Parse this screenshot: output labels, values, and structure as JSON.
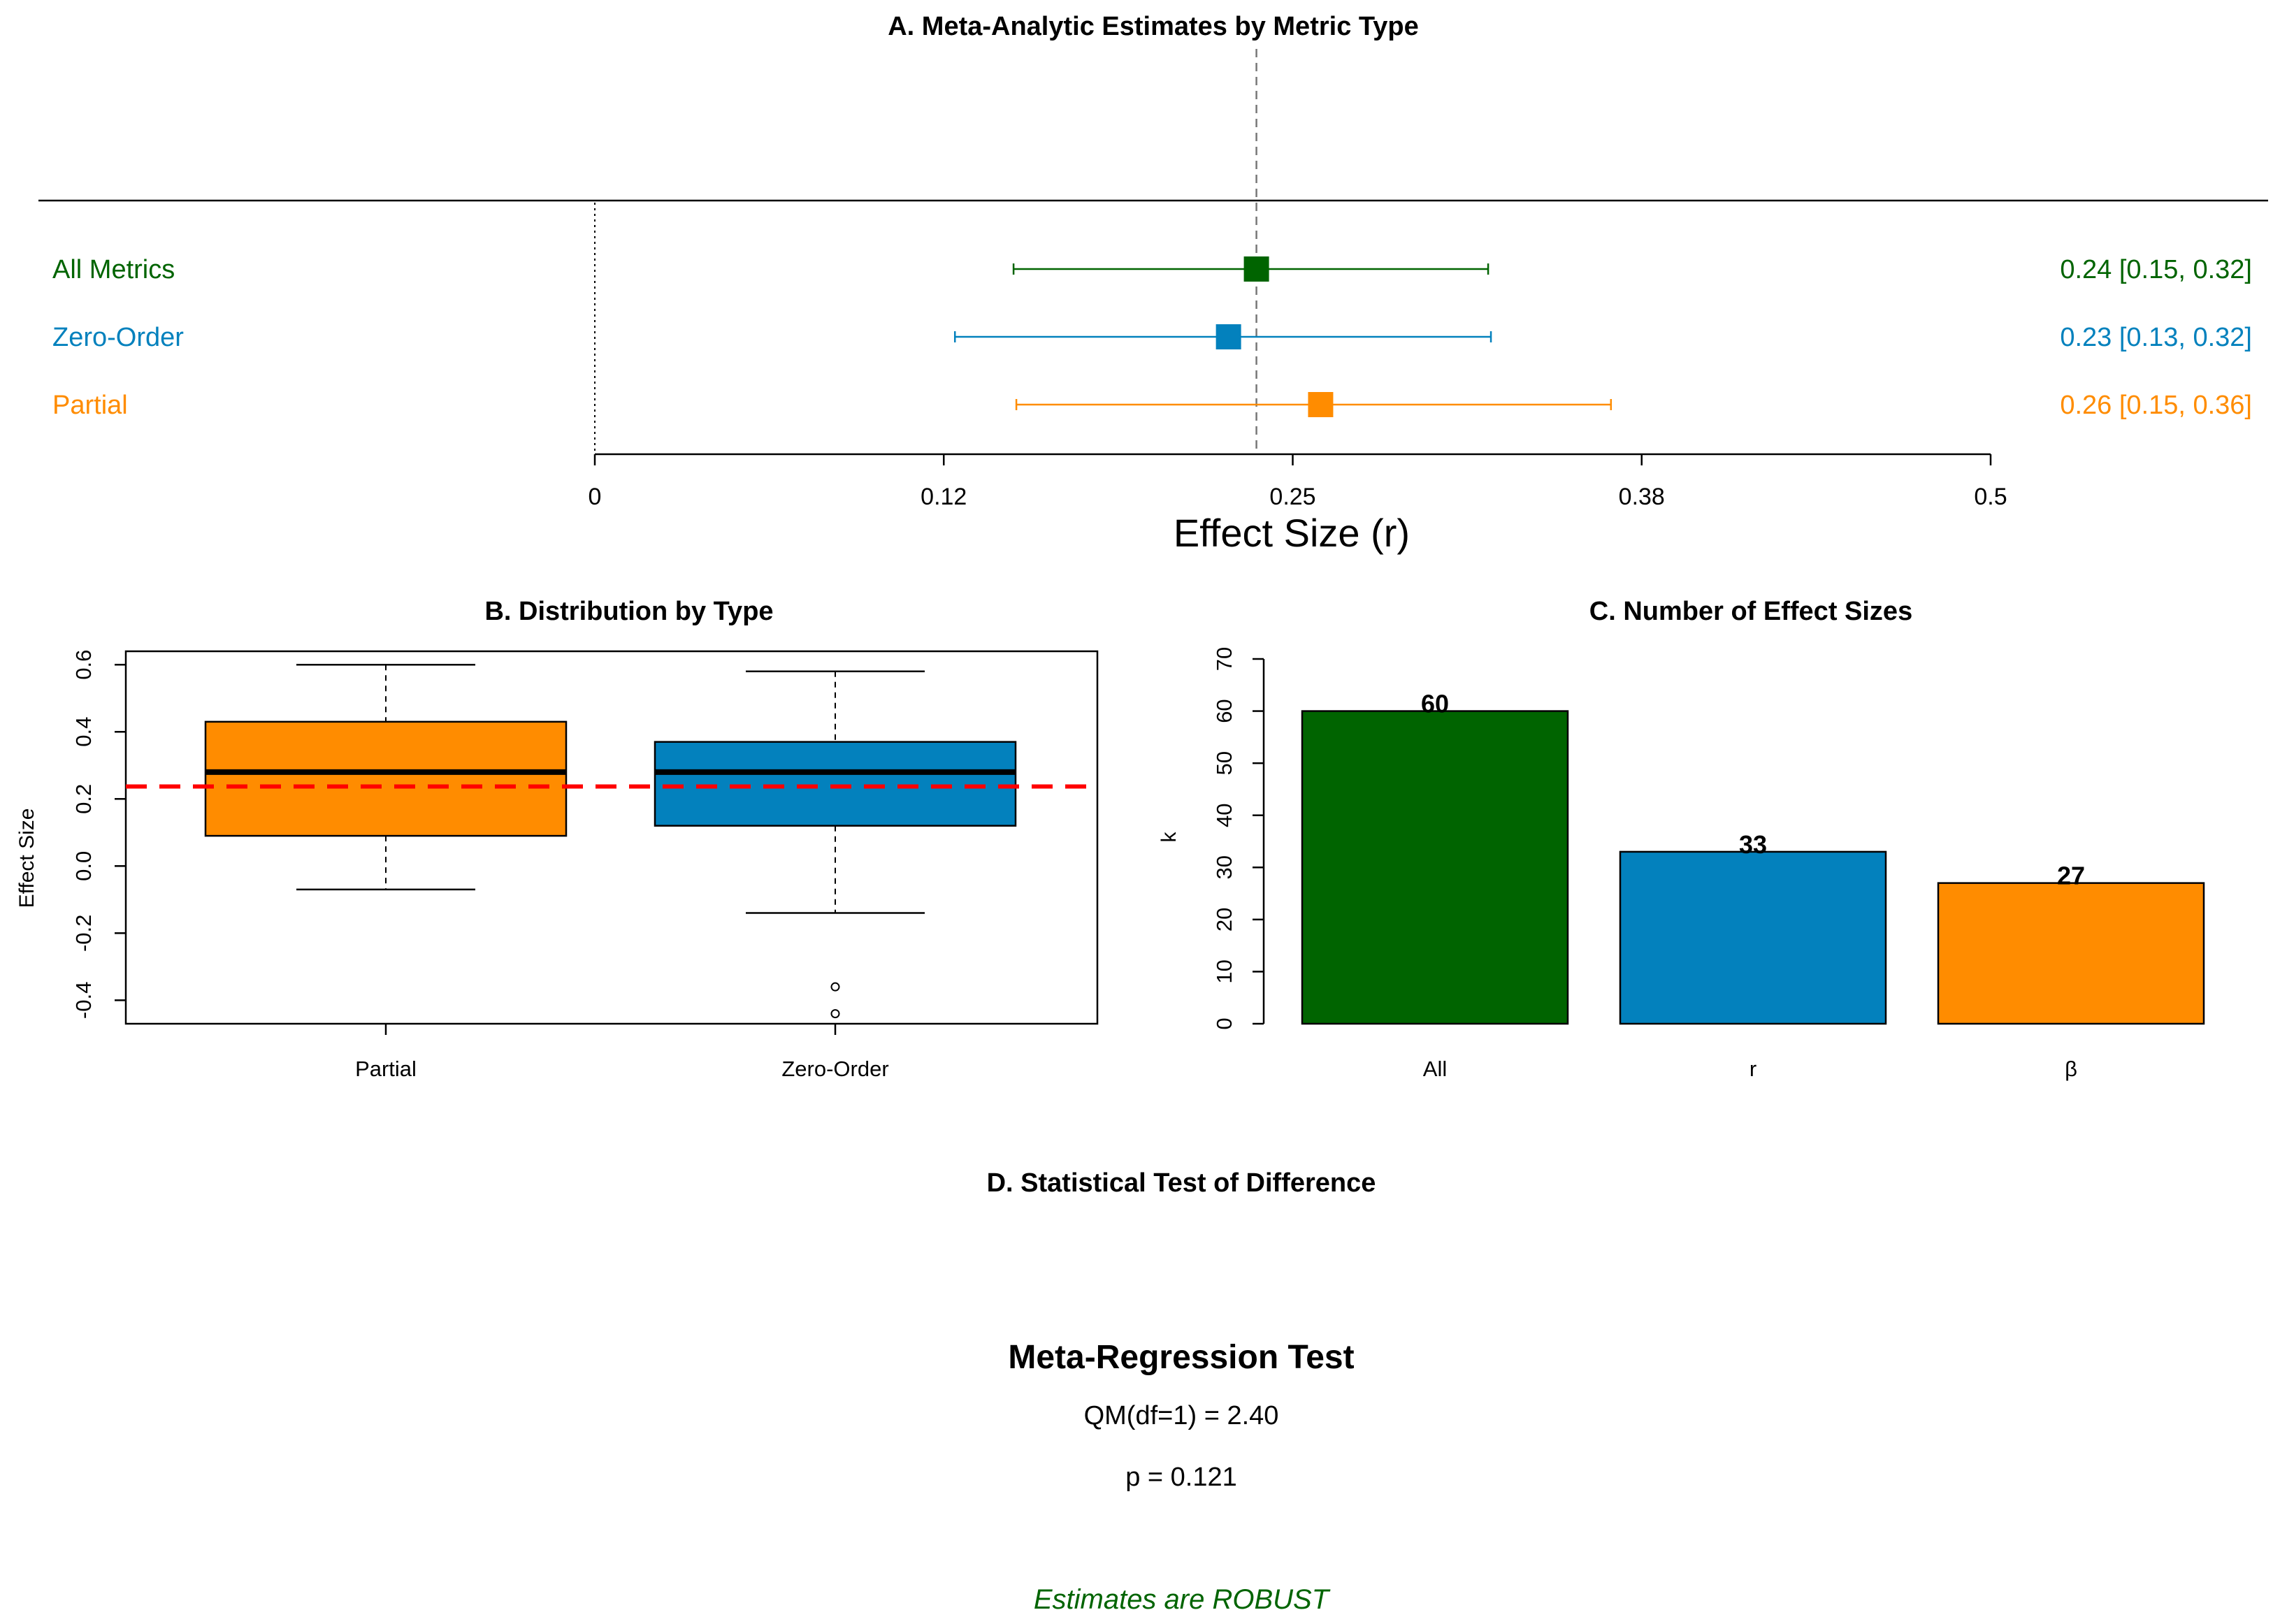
{
  "colors": {
    "all": "#006400",
    "zero_order": "#0381BD",
    "partial": "#FF8C00",
    "reference_line": "#FF0000",
    "robust": "#006400"
  },
  "chart_data": [
    {
      "id": "A",
      "type": "forest",
      "title": "A. Meta-Analytic Estimates by Metric Type",
      "xlabel": "Effect Size (r)",
      "xlim": [
        0,
        0.5
      ],
      "xticks": [
        0,
        0.125,
        0.25,
        0.375,
        0.5
      ],
      "xtick_labels": [
        "0",
        "0.12",
        "0.25",
        "0.38",
        "0.5"
      ],
      "pooled_reference": 0.237,
      "rows": [
        {
          "name": "All Metrics",
          "estimate": 0.237,
          "lower": 0.15,
          "upper": 0.32,
          "label": "0.24 [0.15, 0.32]",
          "color_key": "all"
        },
        {
          "name": "Zero-Order",
          "estimate": 0.227,
          "lower": 0.129,
          "upper": 0.321,
          "label": "0.23 [0.13, 0.32]",
          "color_key": "zero_order"
        },
        {
          "name": "Partial",
          "estimate": 0.26,
          "lower": 0.151,
          "upper": 0.364,
          "label": "0.26 [0.15, 0.36]",
          "color_key": "partial"
        }
      ]
    },
    {
      "id": "B",
      "type": "boxplot",
      "title": "B. Distribution by Type",
      "xlabel": "",
      "ylabel": "Effect Size",
      "ylim": [
        -0.47,
        0.64
      ],
      "yticks": [
        -0.4,
        -0.2,
        0.0,
        0.2,
        0.4,
        0.6
      ],
      "ytick_labels": [
        "-0.4",
        "-0.2",
        "0.0",
        "0.2",
        "0.4",
        "0.6"
      ],
      "reference_line": 0.237,
      "groups": [
        {
          "name": "Partial",
          "color_key": "partial",
          "whisker_low": -0.07,
          "q1": 0.09,
          "median": 0.28,
          "q3": 0.43,
          "whisker_high": 0.6,
          "outliers": []
        },
        {
          "name": "Zero-Order",
          "color_key": "zero_order",
          "whisker_low": -0.14,
          "q1": 0.12,
          "median": 0.28,
          "q3": 0.37,
          "whisker_high": 0.58,
          "outliers": [
            -0.36,
            -0.44
          ]
        }
      ]
    },
    {
      "id": "C",
      "type": "bar",
      "title": "C. Number of Effect Sizes",
      "xlabel": "",
      "ylabel": "k",
      "ylim": [
        0,
        70
      ],
      "yticks": [
        0,
        10,
        20,
        30,
        40,
        50,
        60,
        70
      ],
      "ytick_labels": [
        "0",
        "10",
        "20",
        "30",
        "40",
        "50",
        "60",
        "70"
      ],
      "categories": [
        "All",
        "r",
        "β"
      ],
      "values": [
        60,
        33,
        27
      ],
      "value_labels": [
        "60",
        "33",
        "27"
      ],
      "color_keys": [
        "all",
        "zero_order",
        "partial"
      ]
    }
  ],
  "panel_d": {
    "title": "D. Statistical Test of Difference",
    "test_title": "Meta-Regression Test",
    "statistic": "QM(df=1) = 2.40",
    "p_value": "p = 0.121",
    "conclusion": "Estimates are ROBUST"
  }
}
